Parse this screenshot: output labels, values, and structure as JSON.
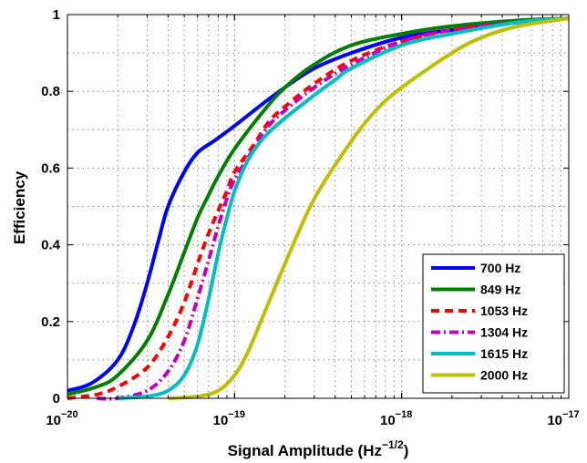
{
  "chart_data": {
    "type": "line",
    "title": "",
    "xlabel": "Signal Amplitude (Hz",
    "xlabel_sup": "−1/2",
    "xlabel_close": ")",
    "ylabel": "Efficiency",
    "xscale": "log",
    "xlim": [
      1e-20,
      1e-17
    ],
    "ylim": [
      0,
      1
    ],
    "grid": true,
    "legend_position": "bottom-right",
    "x_ticks": [
      {
        "base": "10",
        "exp": "−20"
      },
      {
        "base": "10",
        "exp": "−19"
      },
      {
        "base": "10",
        "exp": "−18"
      },
      {
        "base": "10",
        "exp": "−17"
      }
    ],
    "y_ticks": [
      "0",
      "0.2",
      "0.4",
      "0.6",
      "0.8",
      "1"
    ],
    "series": [
      {
        "name": "700 Hz",
        "color": "#0000ff",
        "dash": "solid",
        "x": [
          1e-20,
          1.4e-20,
          2e-20,
          2.5e-20,
          3e-20,
          3.5e-20,
          4e-20,
          5e-20,
          6e-20,
          7.5e-20,
          1e-19,
          1.5e-19,
          2e-19,
          3e-19,
          5e-19,
          1e-18,
          2e-18,
          5e-18,
          1e-17
        ],
        "y": [
          0.02,
          0.04,
          0.1,
          0.19,
          0.3,
          0.41,
          0.5,
          0.59,
          0.64,
          0.67,
          0.71,
          0.77,
          0.81,
          0.86,
          0.9,
          0.94,
          0.96,
          0.98,
          0.99
        ]
      },
      {
        "name": "849 Hz",
        "color": "#007f00",
        "dash": "solid",
        "x": [
          1e-20,
          1.5e-20,
          2e-20,
          3e-20,
          4e-20,
          5e-20,
          6e-20,
          7e-20,
          8e-20,
          1e-19,
          1.5e-19,
          2e-19,
          3e-19,
          5e-19,
          1e-18,
          2e-18,
          5e-18,
          1e-17
        ],
        "y": [
          0.01,
          0.03,
          0.06,
          0.15,
          0.27,
          0.38,
          0.47,
          0.53,
          0.58,
          0.65,
          0.75,
          0.81,
          0.87,
          0.92,
          0.95,
          0.97,
          0.985,
          0.99
        ]
      },
      {
        "name": "1053 Hz",
        "color": "#ff0000",
        "dash": "dashed",
        "x": [
          1e-20,
          1.5e-20,
          2e-20,
          3e-20,
          4e-20,
          5e-20,
          6e-20,
          7e-20,
          8e-20,
          9e-20,
          1e-19,
          1.3e-19,
          1.6e-19,
          2e-19,
          3e-19,
          5e-19,
          1e-18,
          2e-18,
          5e-18,
          1e-17
        ],
        "y": [
          0.0,
          0.01,
          0.03,
          0.08,
          0.16,
          0.25,
          0.35,
          0.43,
          0.49,
          0.54,
          0.59,
          0.66,
          0.72,
          0.76,
          0.82,
          0.88,
          0.93,
          0.96,
          0.98,
          0.99
        ]
      },
      {
        "name": "1304 Hz",
        "color": "#bf00bf",
        "dash": "dashdot",
        "x": [
          1.5e-20,
          2e-20,
          3e-20,
          4e-20,
          5e-20,
          6e-20,
          7e-20,
          8e-20,
          9e-20,
          1e-19,
          1.3e-19,
          1.6e-19,
          2e-19,
          3e-19,
          5e-19,
          1e-18,
          2e-18,
          5e-18,
          1e-17
        ],
        "y": [
          0.0,
          0.0,
          0.02,
          0.07,
          0.15,
          0.26,
          0.36,
          0.45,
          0.52,
          0.57,
          0.65,
          0.71,
          0.75,
          0.81,
          0.87,
          0.93,
          0.96,
          0.98,
          0.99
        ]
      },
      {
        "name": "1615 Hz",
        "color": "#00bfbf",
        "dash": "solid",
        "x": [
          2e-20,
          3e-20,
          4e-20,
          5e-20,
          6e-20,
          7e-20,
          8e-20,
          9e-20,
          1e-19,
          1.2e-19,
          1.5e-19,
          2e-19,
          3e-19,
          4e-19,
          5e-19,
          1e-18,
          2e-18,
          5e-18,
          1e-17
        ],
        "y": [
          0.0,
          0.005,
          0.02,
          0.06,
          0.14,
          0.26,
          0.38,
          0.47,
          0.54,
          0.62,
          0.68,
          0.73,
          0.79,
          0.83,
          0.86,
          0.92,
          0.95,
          0.98,
          0.99
        ]
      },
      {
        "name": "2000 Hz",
        "color": "#bfbf00",
        "dash": "solid",
        "x": [
          4e-20,
          6e-20,
          8e-20,
          1e-19,
          1.2e-19,
          1.5e-19,
          2e-19,
          3e-19,
          5e-19,
          7e-19,
          1e-18,
          2e-18,
          3e-18,
          5e-18,
          1e-17
        ],
        "y": [
          0.0,
          0.005,
          0.02,
          0.06,
          0.12,
          0.22,
          0.35,
          0.52,
          0.67,
          0.75,
          0.81,
          0.9,
          0.94,
          0.97,
          0.99
        ]
      }
    ]
  }
}
